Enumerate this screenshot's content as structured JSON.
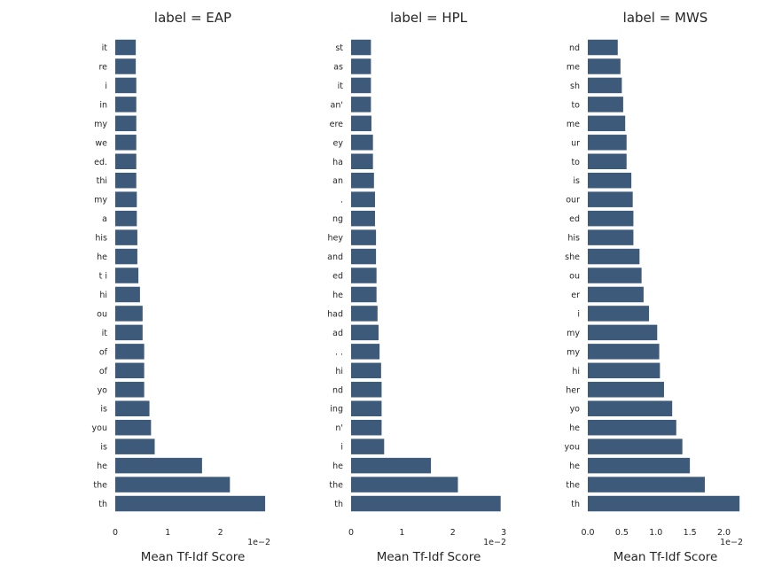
{
  "chart_data": [
    {
      "type": "bar",
      "orientation": "horizontal",
      "title": "label = EAP",
      "xlabel": "Mean Tf-Idf Score",
      "x_offset_label": "1e−2",
      "color": "#3d5a7a",
      "xlim": [
        0,
        0.0295
      ],
      "xticks": [
        0,
        0.01,
        0.02
      ],
      "xtick_labels": [
        "0",
        "1",
        "2"
      ],
      "categories": [
        "it",
        "re",
        "i",
        "in",
        "my",
        "we",
        "ed.",
        "thi",
        "my",
        "a",
        "his",
        "he",
        "t i",
        "hi",
        "ou",
        "it",
        "of",
        "of",
        "yo",
        "is",
        "you",
        "is",
        "he",
        "the",
        "th"
      ],
      "values": [
        0.0039,
        0.0039,
        0.004,
        0.004,
        0.004,
        0.004,
        0.004,
        0.004,
        0.0041,
        0.0041,
        0.0042,
        0.0042,
        0.0044,
        0.0047,
        0.0052,
        0.0052,
        0.0055,
        0.0055,
        0.0055,
        0.0065,
        0.0068,
        0.0075,
        0.0165,
        0.0218,
        0.0285
      ]
    },
    {
      "type": "bar",
      "orientation": "horizontal",
      "title": "label = HPL",
      "xlabel": "Mean Tf-Idf Score",
      "x_offset_label": "1e−2",
      "color": "#3d5a7a",
      "xlim": [
        0,
        0.0305
      ],
      "xticks": [
        0,
        0.01,
        0.02,
        0.03
      ],
      "xtick_labels": [
        "0",
        "1",
        "2",
        "3"
      ],
      "categories": [
        "st",
        "as",
        "it",
        "an'",
        "ere",
        "ey",
        "ha",
        "an",
        ".",
        "ng",
        "hey",
        "and",
        "ed",
        "he",
        "had",
        "ad",
        ". .",
        "hi",
        "nd",
        "ing",
        "n'",
        "i",
        "he",
        "the",
        "th"
      ],
      "values": [
        0.0039,
        0.0039,
        0.0039,
        0.0039,
        0.004,
        0.0043,
        0.0043,
        0.0045,
        0.0047,
        0.0047,
        0.0049,
        0.0049,
        0.005,
        0.005,
        0.0052,
        0.0054,
        0.0056,
        0.0059,
        0.006,
        0.006,
        0.006,
        0.0065,
        0.0157,
        0.021,
        0.0294
      ]
    },
    {
      "type": "bar",
      "orientation": "horizontal",
      "title": "label = MWS",
      "xlabel": "Mean Tf-Idf Score",
      "x_offset_label": "1e−2",
      "color": "#3d5a7a",
      "xlim": [
        0,
        0.0228
      ],
      "xticks": [
        0,
        0.005,
        0.01,
        0.015,
        0.02
      ],
      "xtick_labels": [
        "0.0",
        "0.5",
        "1.0",
        "1.5",
        "2.0"
      ],
      "categories": [
        "nd",
        "me",
        "sh",
        "to",
        "me",
        "ur",
        "to",
        "is",
        "our",
        "ed",
        "his",
        "she",
        "ou",
        "er",
        "i",
        "my",
        "my",
        "hi",
        "her",
        "yo",
        "he",
        "you",
        "he",
        "the",
        "th"
      ],
      "values": [
        0.0044,
        0.0048,
        0.005,
        0.0052,
        0.0055,
        0.0057,
        0.0057,
        0.0064,
        0.0066,
        0.0067,
        0.0067,
        0.0076,
        0.0079,
        0.0082,
        0.009,
        0.0102,
        0.0105,
        0.0106,
        0.0112,
        0.0124,
        0.013,
        0.0139,
        0.015,
        0.0172,
        0.0223
      ]
    }
  ]
}
